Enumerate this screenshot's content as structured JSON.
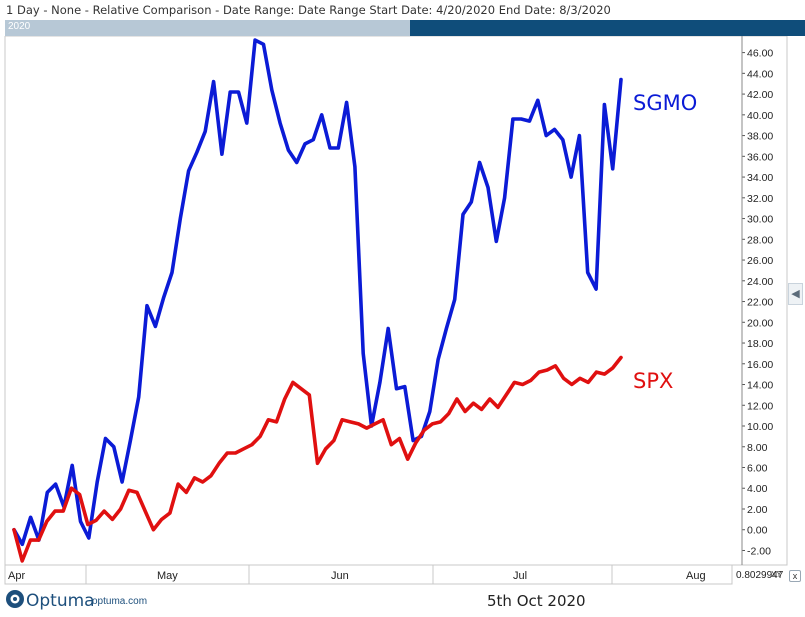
{
  "header": {
    "text": "1 Day - None - Relative Comparison - Date Range: Date Range  Start Date: 4/20/2020  End Date: 8/3/2020"
  },
  "scroll_strip": {
    "year": "2020"
  },
  "readout": {
    "value": "0.8029947",
    "xy_label": "XY",
    "close": "x"
  },
  "footer": {
    "brand": "Optuma",
    "url": "optuma.com",
    "date": "5th Oct 2020"
  },
  "colors": {
    "sgmo": "#0b1bd6",
    "spx": "#e01010",
    "grid": "#dcdcdc",
    "strip_dark": "#0f4d7a"
  },
  "icons": {
    "side_arrow": "chevron-left-icon",
    "logo": "optuma-logo-icon",
    "close": "close-icon"
  },
  "chart_data": {
    "type": "line",
    "x_unit": "trading day",
    "x_labels": [
      "Apr",
      "May",
      "Jun",
      "Jul",
      "Aug"
    ],
    "y_ticks": [
      "46.00",
      "44.00",
      "42.00",
      "40.00",
      "38.00",
      "36.00",
      "34.00",
      "32.00",
      "30.00",
      "28.00",
      "26.00",
      "24.00",
      "22.00",
      "20.00",
      "18.00",
      "16.00",
      "14.00",
      "12.00",
      "10.00",
      "8.00",
      "6.00",
      "4.00",
      "2.00",
      "0.00",
      "-2.00"
    ],
    "ylim": [
      -3.4,
      47.6
    ],
    "series": [
      {
        "name": "SGMO",
        "values": [
          0.0,
          -1.4,
          1.2,
          -1.0,
          3.6,
          4.4,
          2.2,
          6.2,
          0.8,
          -0.8,
          4.6,
          8.8,
          8.0,
          4.6,
          8.6,
          12.8,
          21.6,
          19.6,
          22.4,
          24.8,
          30.0,
          34.6,
          36.4,
          38.4,
          43.2,
          36.2,
          42.2,
          42.2,
          39.2,
          47.2,
          46.8,
          42.4,
          39.2,
          36.6,
          35.4,
          37.2,
          37.6,
          40.0,
          36.8,
          36.8,
          41.2,
          35.0,
          17.0,
          10.0,
          14.2,
          19.4,
          13.6,
          13.8,
          8.6,
          9.0,
          11.4,
          16.4,
          19.4,
          22.2,
          30.4,
          31.6,
          35.4,
          33.0,
          27.8,
          32.0,
          39.6,
          39.6,
          39.4,
          41.4,
          38.0,
          38.6,
          37.6,
          34.0,
          38.0,
          24.8,
          23.2,
          41.0,
          34.8,
          43.4
        ]
      },
      {
        "name": "SPX",
        "values": [
          0.0,
          -3.0,
          -1.0,
          -1.0,
          0.8,
          1.8,
          1.8,
          4.0,
          3.4,
          0.5,
          0.9,
          1.8,
          1.0,
          2.0,
          3.8,
          3.6,
          1.8,
          0.0,
          1.0,
          1.6,
          4.4,
          3.6,
          5.0,
          4.6,
          5.2,
          6.4,
          7.4,
          7.4,
          7.8,
          8.2,
          9.0,
          10.6,
          10.4,
          12.6,
          14.2,
          13.6,
          13.0,
          6.4,
          7.8,
          8.6,
          10.6,
          10.4,
          10.2,
          9.8,
          10.2,
          10.6,
          8.2,
          8.8,
          6.8,
          8.4,
          9.6,
          10.2,
          10.4,
          11.2,
          12.6,
          11.4,
          12.2,
          11.6,
          12.6,
          11.8,
          13.0,
          14.2,
          14.0,
          14.4,
          15.2,
          15.4,
          15.8,
          14.6,
          14.0,
          14.6,
          14.2,
          15.2,
          15.0,
          15.6,
          16.6
        ]
      }
    ],
    "series_labels": [
      "SGMO",
      "SPX"
    ]
  }
}
